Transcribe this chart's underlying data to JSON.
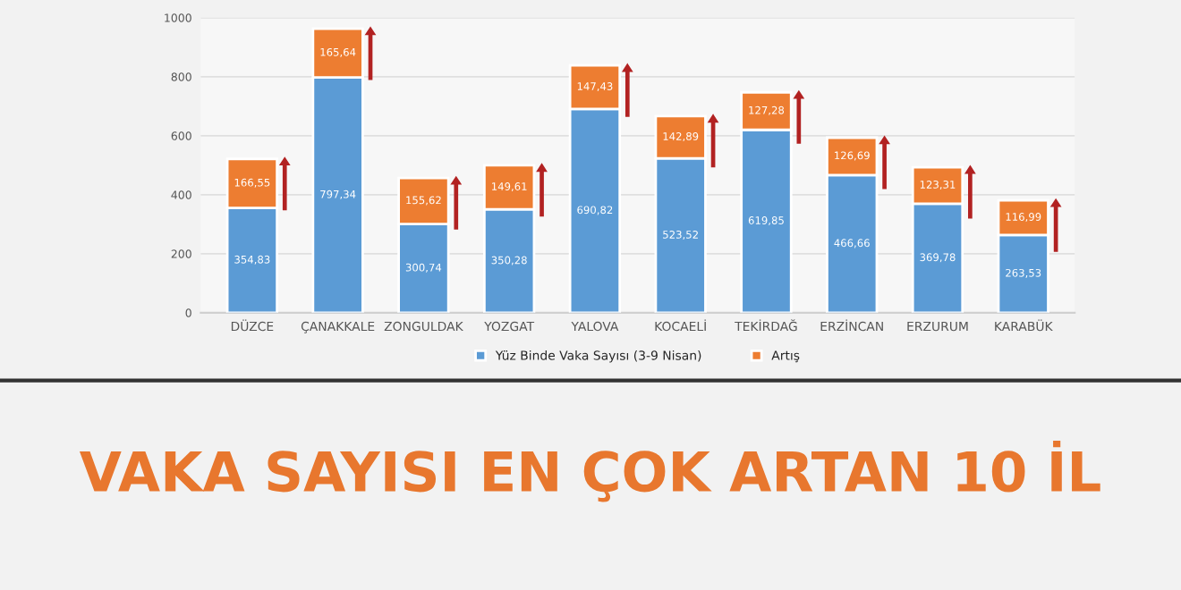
{
  "chart_data": {
    "type": "bar",
    "title": "VAKA SAYISI EN ÇOK ARTAN 10 İL",
    "stacked": true,
    "categories": [
      "DÜZCE",
      "ÇANAKKALE",
      "ZONGULDAK",
      "YOZGAT",
      "YALOVA",
      "KOCAELİ",
      "TEKİRDAĞ",
      "ERZİNCAN",
      "ERZURUM",
      "KARABÜK"
    ],
    "series": [
      {
        "name": "Yüz Binde Vaka Sayısı (3-9 Nisan)",
        "color": "#5b9bd5",
        "values": [
          354.83,
          797.34,
          300.74,
          350.28,
          690.82,
          523.52,
          619.85,
          466.66,
          369.78,
          263.53
        ],
        "value_labels": [
          "354,83",
          "797,34",
          "300,74",
          "350,28",
          "690,82",
          "523,52",
          "619,85",
          "466,66",
          "369,78",
          "263,53"
        ]
      },
      {
        "name": "Artış",
        "color": "#ed7d31",
        "values": [
          166.55,
          165.64,
          155.62,
          149.61,
          147.43,
          142.89,
          127.28,
          126.69,
          123.31,
          116.99
        ],
        "value_labels": [
          "166,55",
          "165,64",
          "155,62",
          "149,61",
          "147,43",
          "142,89",
          "127,28",
          "126,69",
          "123,31",
          "116,99"
        ]
      }
    ],
    "ylim": [
      0,
      1000
    ],
    "yticks": [
      0,
      200,
      400,
      600,
      800,
      1000
    ],
    "grid": "y",
    "legend": "bottom"
  }
}
